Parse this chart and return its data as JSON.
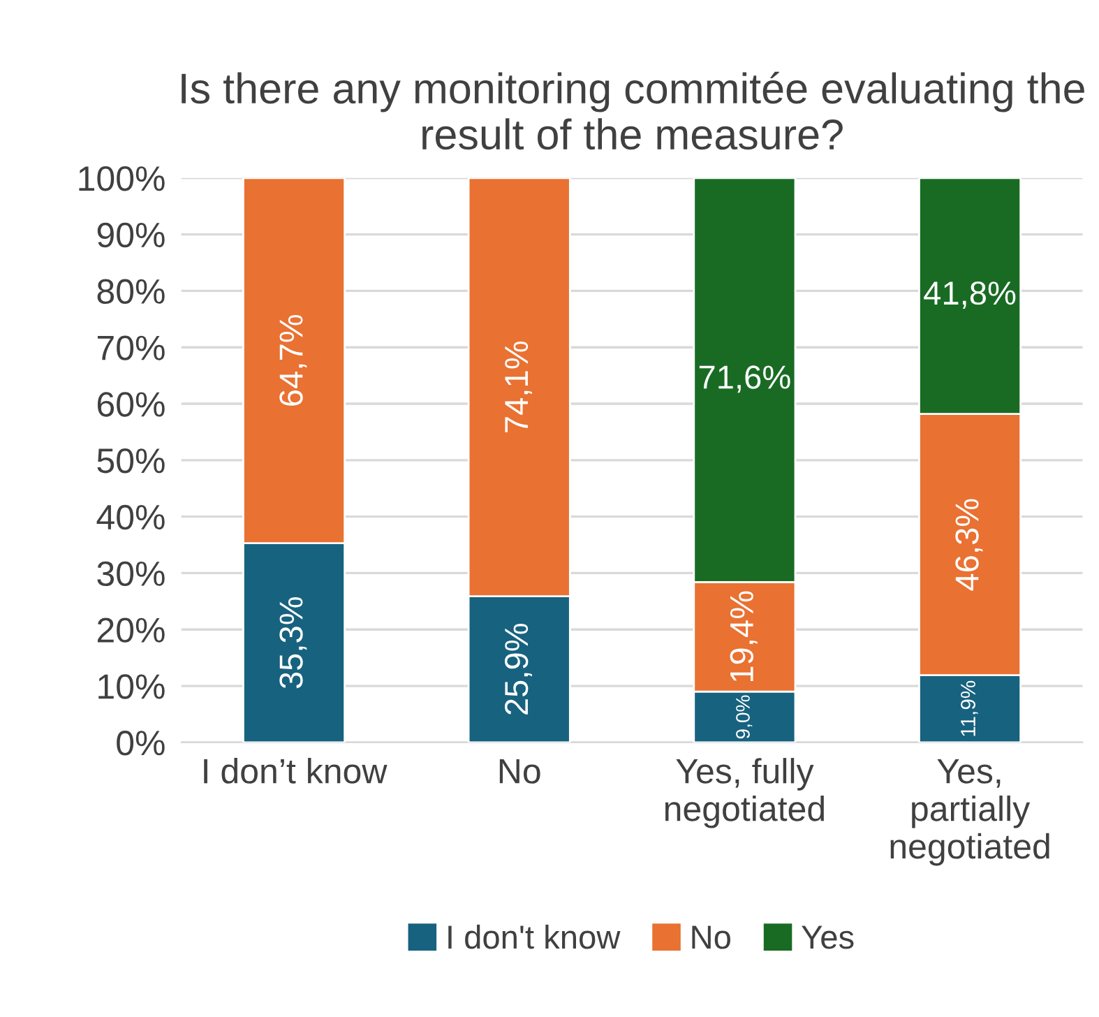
{
  "chart_data": {
    "type": "bar",
    "stacked": true,
    "title": "Is there any monitoring commitée evaluating the result of the measure?",
    "categories": [
      "I don’t know",
      "No",
      "Yes, fully negotiated",
      "Yes, partially negotiated"
    ],
    "series": [
      {
        "name": "I don't know",
        "color": "#17627f",
        "values": [
          35.3,
          25.9,
          9.0,
          11.9
        ],
        "value_labels": [
          "35,3%",
          "25,9%",
          "9,0%",
          "11,9%"
        ]
      },
      {
        "name": "No",
        "color": "#e97132",
        "values": [
          64.7,
          74.1,
          19.4,
          46.3
        ],
        "value_labels": [
          "64,7%",
          "74,1%",
          "19,4%",
          "46,3%"
        ]
      },
      {
        "name": "Yes",
        "color": "#196b24",
        "values": [
          null,
          null,
          71.6,
          41.8
        ],
        "value_labels": [
          null,
          null,
          "71,6%",
          "41,8%"
        ]
      }
    ],
    "ylim": [
      0,
      100
    ],
    "yticks": [
      {
        "value": 0,
        "label": "0%"
      },
      {
        "value": 10,
        "label": "10%"
      },
      {
        "value": 20,
        "label": "20%"
      },
      {
        "value": 30,
        "label": "30%"
      },
      {
        "value": 40,
        "label": "40%"
      },
      {
        "value": 50,
        "label": "50%"
      },
      {
        "value": 60,
        "label": "60%"
      },
      {
        "value": 70,
        "label": "70%"
      },
      {
        "value": 80,
        "label": "80%"
      },
      {
        "value": 90,
        "label": "90%"
      },
      {
        "value": 100,
        "label": "100%"
      }
    ],
    "grid": "y",
    "legend": "bottom"
  }
}
